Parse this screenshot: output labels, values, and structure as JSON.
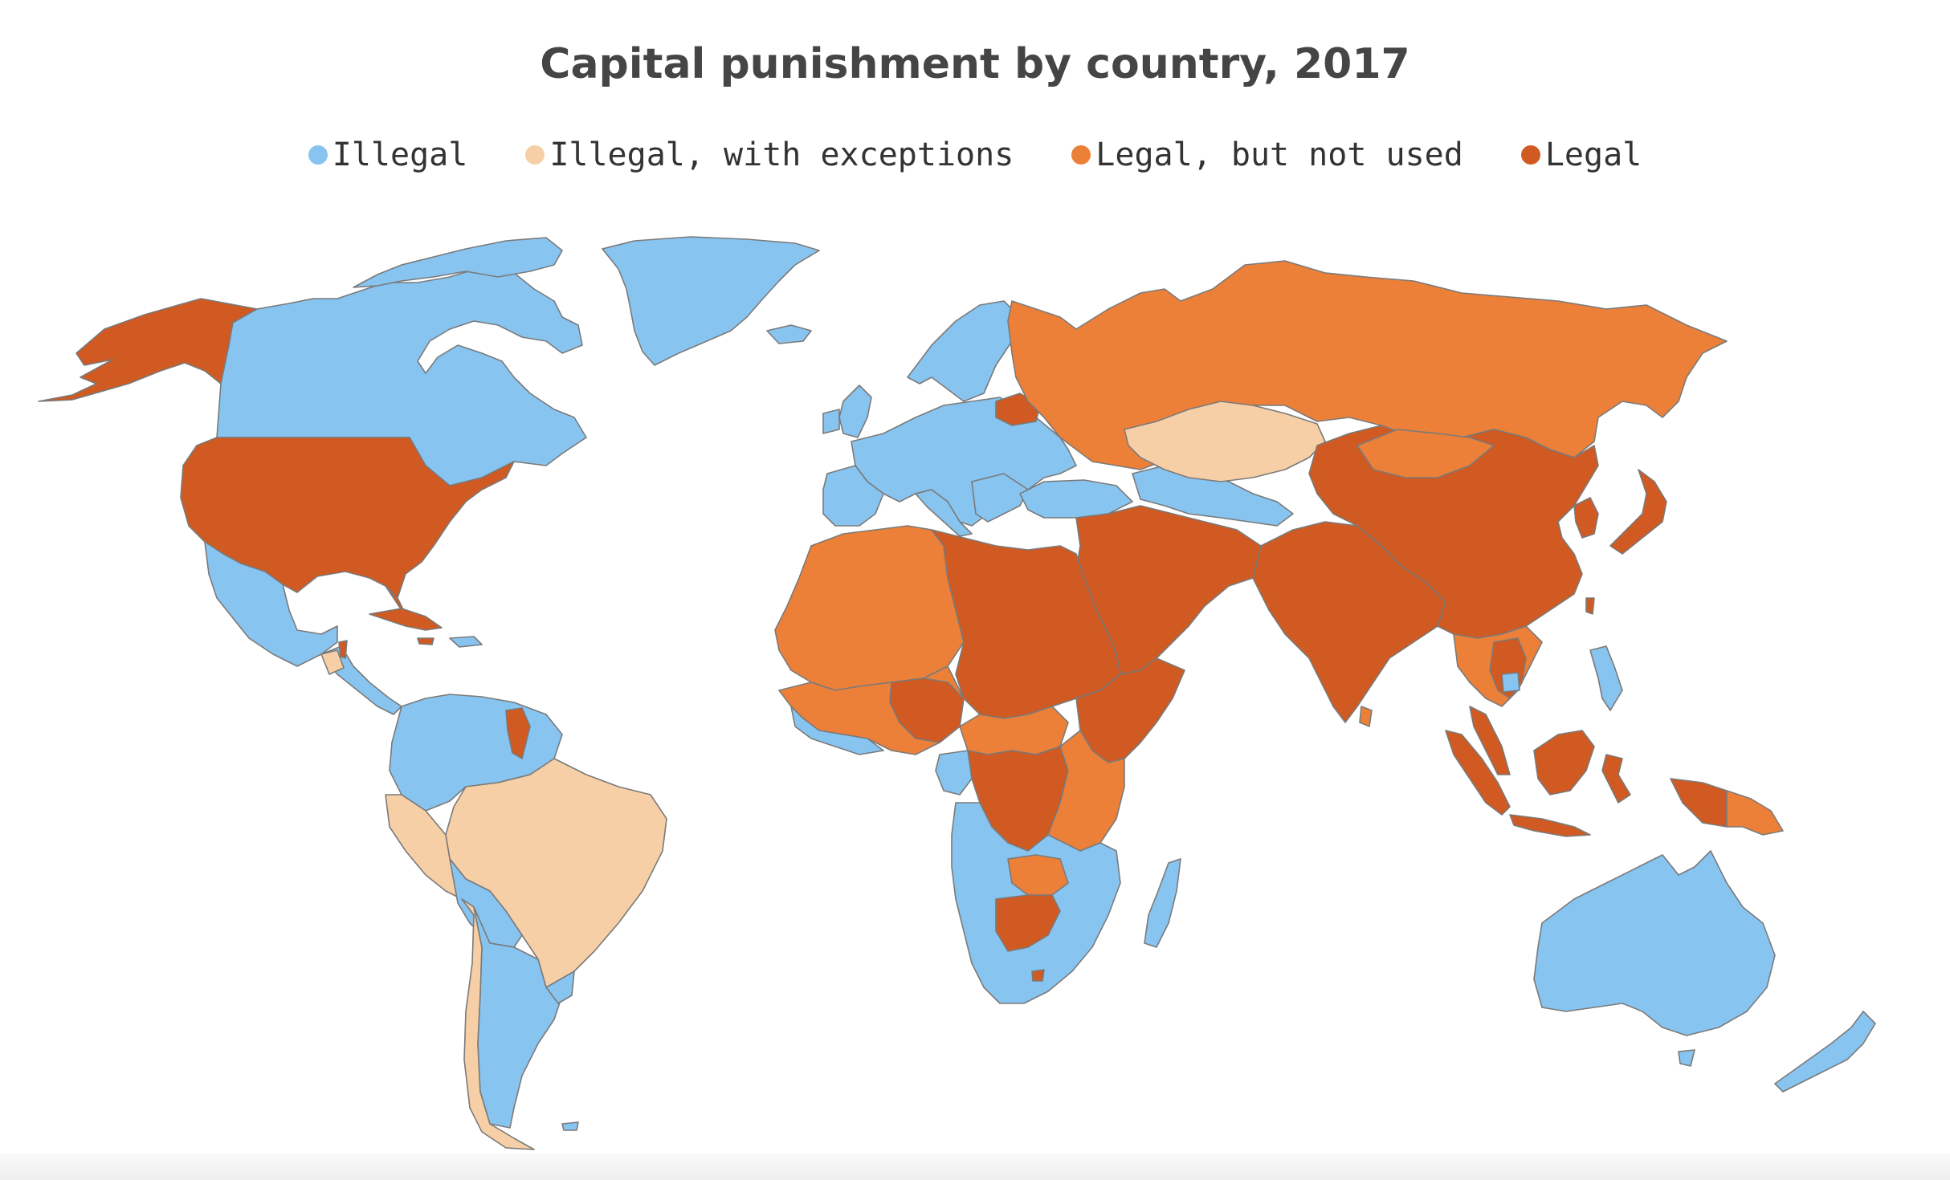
{
  "title": "Capital punishment by country, 2017",
  "legend": [
    {
      "label": "Illegal",
      "color": "#88c4f0"
    },
    {
      "label": "Illegal, with exceptions",
      "color": "#f7cfa6"
    },
    {
      "label": "Legal, but not used",
      "color": "#ec8038"
    },
    {
      "label": "Legal",
      "color": "#d05a22"
    }
  ],
  "colors": {
    "illegal": "#88c4f0",
    "exceptions": "#f7cfa6",
    "not_used": "#ec8038",
    "legal": "#d05a22",
    "border": "#7a7a7a"
  },
  "chart_data": {
    "type": "choropleth",
    "title": "Capital punishment by country, 2017",
    "categories": [
      "Illegal",
      "Illegal, with exceptions",
      "Legal, but not used",
      "Legal"
    ]
  }
}
